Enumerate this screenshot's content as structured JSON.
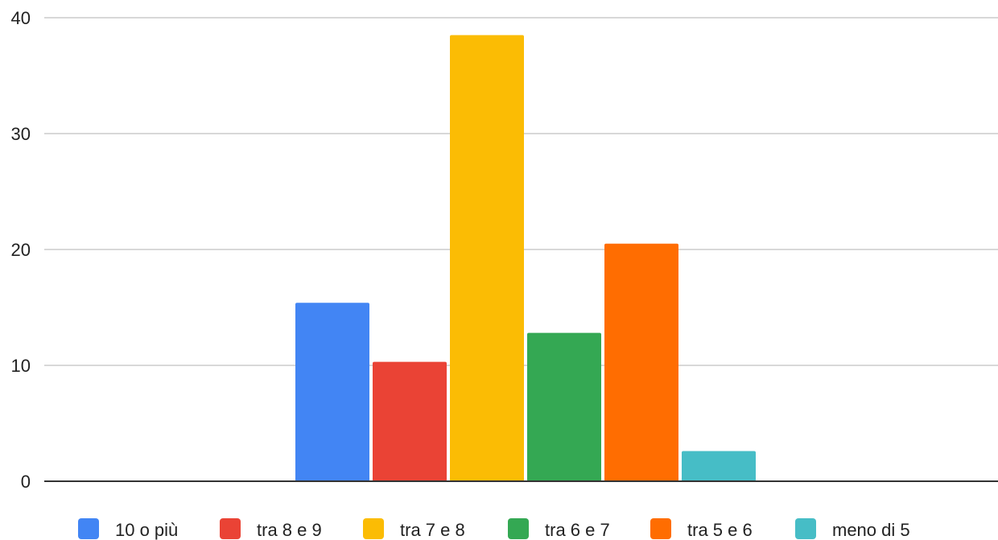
{
  "chart_data": {
    "type": "bar",
    "title": "",
    "xlabel": "",
    "ylabel": "",
    "ylim": [
      0,
      40
    ],
    "yticks": [
      0,
      10,
      20,
      30,
      40
    ],
    "grid": true,
    "legend_position": "bottom",
    "series": [
      {
        "name": "10 o più",
        "value": 15.4,
        "color": "#4285F4"
      },
      {
        "name": "tra 8 e 9",
        "value": 10.3,
        "color": "#EA4335"
      },
      {
        "name": "tra 7 e 8",
        "value": 38.5,
        "color": "#FBBC04"
      },
      {
        "name": "tra 6 e 7",
        "value": 12.8,
        "color": "#34A853"
      },
      {
        "name": "tra 5 e 6",
        "value": 20.5,
        "color": "#FF6D01"
      },
      {
        "name": "meno di 5",
        "value": 2.6,
        "color": "#46BDC6"
      }
    ]
  }
}
